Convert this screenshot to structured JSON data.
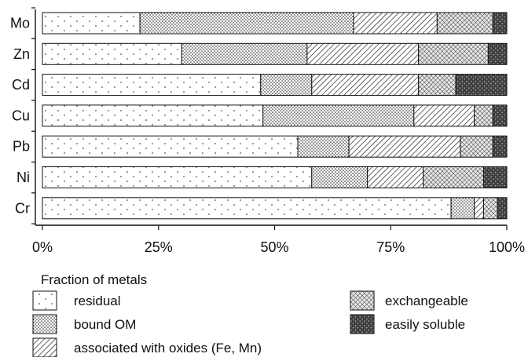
{
  "chart_data": {
    "type": "bar",
    "orientation": "horizontal",
    "stacked": true,
    "categories": [
      "Mo",
      "Zn",
      "Cd",
      "Cu",
      "Pb",
      "Ni",
      "Cr"
    ],
    "series": [
      {
        "name": "residual",
        "pattern": "sparse-dots",
        "values": [
          21,
          30,
          47,
          47.5,
          55,
          58,
          88
        ]
      },
      {
        "name": "bound OM",
        "pattern": "dense-dots",
        "values": [
          46,
          27,
          11,
          32.5,
          11,
          12,
          5
        ]
      },
      {
        "name": "associated with oxides (Fe, Mn)",
        "pattern": "hatch",
        "values": [
          18,
          24,
          23,
          13,
          24,
          12,
          2
        ]
      },
      {
        "name": "exchangeable",
        "pattern": "crosshatch",
        "values": [
          12,
          15,
          8,
          4,
          7,
          13,
          3
        ]
      },
      {
        "name": "easily soluble",
        "pattern": "dark-check",
        "values": [
          3,
          4,
          11,
          3,
          3,
          5,
          2
        ]
      }
    ],
    "xlim": [
      0,
      100
    ],
    "xticks": [
      "0%",
      "25%",
      "50%",
      "75%",
      "100%"
    ],
    "title": "",
    "xlabel": "",
    "ylabel": "",
    "grid": false,
    "legend": {
      "title": "Fraction of metals",
      "placement": "bottom"
    },
    "colors": {
      "ink": "#111111",
      "background": "#ffffff"
    }
  }
}
